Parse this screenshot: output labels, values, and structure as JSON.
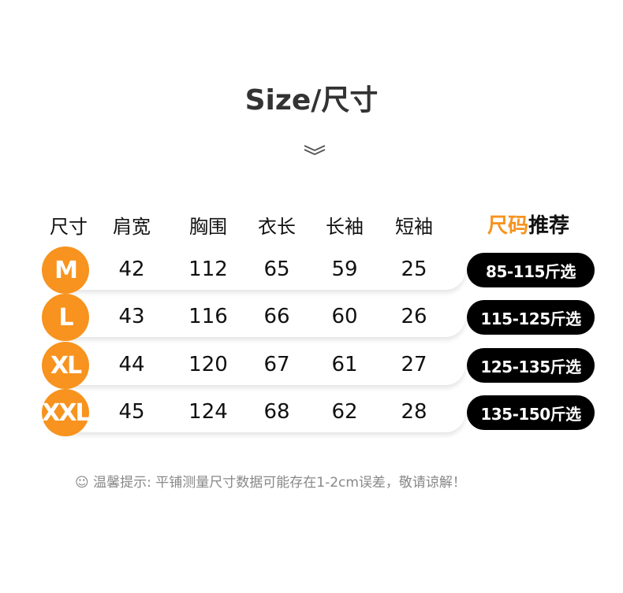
{
  "title": "Size/尺寸",
  "headers": [
    "尺寸",
    "肩宽",
    "胸围",
    "衣长",
    "长袖",
    "短袖"
  ],
  "recommend_header": {
    "part1": "尺码",
    "part2": "推荐"
  },
  "rows": [
    {
      "size": "M",
      "values": [
        "42",
        "112",
        "65",
        "59",
        "25"
      ],
      "recommend": "85-115斤选"
    },
    {
      "size": "L",
      "values": [
        "43",
        "116",
        "66",
        "60",
        "26"
      ],
      "recommend": "115-125斤选"
    },
    {
      "size": "XL",
      "values": [
        "44",
        "120",
        "67",
        "61",
        "27"
      ],
      "recommend": "125-135斤选"
    },
    {
      "size": "XXL",
      "values": [
        "45",
        "124",
        "68",
        "62",
        "28"
      ],
      "recommend": "135-150斤选"
    }
  ],
  "note": {
    "icon": "smiley-icon",
    "text": "☺ 温馨提示: 平铺测量尺寸数据可能存在1-2cm误差，敬请谅解！"
  },
  "colors": {
    "accent": "#f7931e",
    "pill": "#000000",
    "title": "#333333"
  }
}
